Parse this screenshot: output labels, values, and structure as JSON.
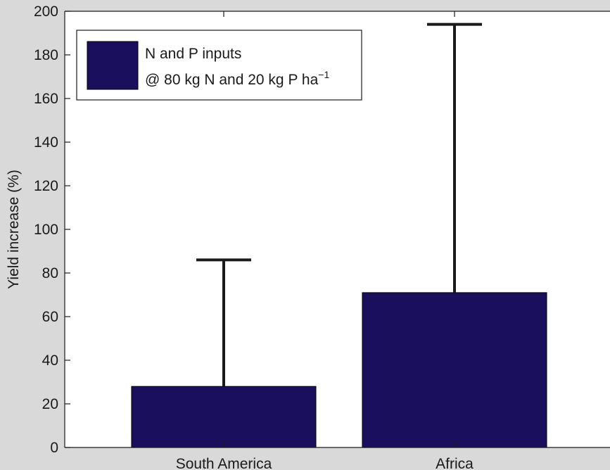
{
  "chart_data": {
    "type": "bar",
    "categories": [
      "South America",
      "Africa"
    ],
    "series": [
      {
        "name": "N and P inputs @ 80 kg N and 20 kg P ha⁻¹",
        "values": [
          28,
          71
        ],
        "error_upper": [
          86,
          194
        ]
      }
    ],
    "ylabel": "Yield increase (%)",
    "xlabel": "",
    "ylim": [
      0,
      200
    ],
    "yticks": [
      0,
      20,
      40,
      60,
      80,
      100,
      120,
      140,
      160,
      180,
      200
    ],
    "grid": false,
    "legend": {
      "placement": "top-left",
      "line1": "N and P inputs",
      "line2_main": "@ 80 kg N and 20 kg P ha",
      "line2_sup": "−1"
    },
    "colors": {
      "bar": "#1a0f5c",
      "errorbar": "#1a1a1a",
      "plot_bg": "#ffffff",
      "figure_bg": "#d9d9d9"
    }
  }
}
